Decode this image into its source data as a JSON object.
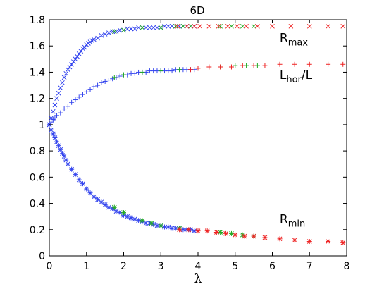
{
  "chart_data": {
    "type": "scatter",
    "title": "6D",
    "xlabel": "λ",
    "ylabel": "",
    "xlim": [
      0,
      8
    ],
    "ylim": [
      0,
      1.8
    ],
    "xticks": [
      "0",
      "1",
      "2",
      "3",
      "4",
      "5",
      "6",
      "7",
      "8"
    ],
    "yticks": [
      "0",
      "0.2",
      "0.4",
      "0.6",
      "0.8",
      "1",
      "1.2",
      "1.4",
      "1.6",
      "1.8"
    ],
    "grid": false,
    "colors": {
      "blue": "#3344ee",
      "green": "#22aa22",
      "red": "#ee2222"
    },
    "annotations": [
      {
        "base": "R",
        "sub": "max",
        "suffix": "",
        "x": 6.5,
        "y": 1.63
      },
      {
        "base": "L",
        "sub": "hor",
        "suffix": "/L",
        "x": 6.5,
        "y": 1.35
      },
      {
        "base": "R",
        "sub": "min",
        "suffix": "",
        "x": 6.5,
        "y": 0.25
      }
    ],
    "series": [
      {
        "curve": "R_max",
        "marker": "x",
        "color": "#3344ee",
        "points": [
          [
            0.0,
            1.0
          ],
          [
            0.05,
            1.05
          ],
          [
            0.1,
            1.1
          ],
          [
            0.15,
            1.15
          ],
          [
            0.2,
            1.2
          ],
          [
            0.25,
            1.24
          ],
          [
            0.3,
            1.28
          ],
          [
            0.35,
            1.32
          ],
          [
            0.4,
            1.36
          ],
          [
            0.45,
            1.39
          ],
          [
            0.5,
            1.42
          ],
          [
            0.55,
            1.44
          ],
          [
            0.6,
            1.46
          ],
          [
            0.65,
            1.48
          ],
          [
            0.7,
            1.5
          ],
          [
            0.75,
            1.52
          ],
          [
            0.8,
            1.54
          ],
          [
            0.85,
            1.56
          ],
          [
            0.9,
            1.58
          ],
          [
            0.95,
            1.59
          ],
          [
            1.0,
            1.61
          ],
          [
            1.05,
            1.62
          ],
          [
            1.1,
            1.63
          ],
          [
            1.15,
            1.64
          ],
          [
            1.2,
            1.65
          ],
          [
            1.3,
            1.66
          ],
          [
            1.4,
            1.68
          ],
          [
            1.5,
            1.69
          ],
          [
            1.6,
            1.7
          ],
          [
            1.7,
            1.71
          ],
          [
            1.8,
            1.71
          ],
          [
            1.9,
            1.72
          ],
          [
            2.0,
            1.72
          ],
          [
            2.1,
            1.73
          ],
          [
            2.2,
            1.73
          ],
          [
            2.3,
            1.73
          ],
          [
            2.4,
            1.74
          ],
          [
            2.5,
            1.74
          ],
          [
            2.6,
            1.74
          ],
          [
            2.7,
            1.74
          ],
          [
            2.8,
            1.74
          ],
          [
            2.9,
            1.74
          ],
          [
            3.0,
            1.74
          ],
          [
            3.1,
            1.75
          ],
          [
            3.2,
            1.75
          ],
          [
            3.3,
            1.75
          ],
          [
            3.4,
            1.75
          ],
          [
            3.5,
            1.75
          ],
          [
            3.6,
            1.75
          ],
          [
            3.7,
            1.75
          ],
          [
            3.8,
            1.75
          ],
          [
            3.9,
            1.75
          ]
        ]
      },
      {
        "curve": "R_max",
        "marker": "x",
        "color": "#22aa22",
        "points": [
          [
            1.75,
            1.71
          ],
          [
            2.0,
            1.72
          ],
          [
            2.5,
            1.74
          ],
          [
            3.0,
            1.74
          ],
          [
            3.4,
            1.75
          ],
          [
            3.6,
            1.75
          ],
          [
            3.8,
            1.75
          ],
          [
            4.6,
            1.75
          ],
          [
            4.9,
            1.75
          ],
          [
            5.2,
            1.75
          ],
          [
            5.5,
            1.75
          ]
        ]
      },
      {
        "curve": "R_max",
        "marker": "x",
        "color": "#ee2222",
        "points": [
          [
            3.45,
            1.75
          ],
          [
            3.7,
            1.75
          ],
          [
            3.9,
            1.75
          ],
          [
            4.05,
            1.75
          ],
          [
            4.3,
            1.75
          ],
          [
            4.55,
            1.75
          ],
          [
            4.8,
            1.75
          ],
          [
            5.05,
            1.75
          ],
          [
            5.3,
            1.75
          ],
          [
            5.6,
            1.75
          ],
          [
            6.0,
            1.75
          ],
          [
            6.5,
            1.75
          ],
          [
            7.0,
            1.75
          ],
          [
            7.5,
            1.75
          ],
          [
            7.9,
            1.75
          ]
        ]
      },
      {
        "curve": "L_hor/L",
        "marker": "+",
        "color": "#3344ee",
        "points": [
          [
            0.0,
            1.0
          ],
          [
            0.05,
            1.02
          ],
          [
            0.1,
            1.04
          ],
          [
            0.15,
            1.05
          ],
          [
            0.2,
            1.07
          ],
          [
            0.3,
            1.09
          ],
          [
            0.4,
            1.12
          ],
          [
            0.5,
            1.14
          ],
          [
            0.6,
            1.17
          ],
          [
            0.7,
            1.19
          ],
          [
            0.8,
            1.21
          ],
          [
            0.9,
            1.23
          ],
          [
            1.0,
            1.25
          ],
          [
            1.1,
            1.27
          ],
          [
            1.2,
            1.29
          ],
          [
            1.3,
            1.3
          ],
          [
            1.4,
            1.32
          ],
          [
            1.5,
            1.33
          ],
          [
            1.6,
            1.34
          ],
          [
            1.7,
            1.35
          ],
          [
            1.8,
            1.36
          ],
          [
            1.9,
            1.37
          ],
          [
            2.0,
            1.38
          ],
          [
            2.1,
            1.38
          ],
          [
            2.2,
            1.39
          ],
          [
            2.3,
            1.39
          ],
          [
            2.4,
            1.4
          ],
          [
            2.5,
            1.4
          ],
          [
            2.6,
            1.4
          ],
          [
            2.7,
            1.41
          ],
          [
            2.8,
            1.41
          ],
          [
            2.9,
            1.41
          ],
          [
            3.0,
            1.41
          ],
          [
            3.1,
            1.41
          ],
          [
            3.2,
            1.41
          ],
          [
            3.3,
            1.41
          ],
          [
            3.4,
            1.42
          ],
          [
            3.5,
            1.42
          ],
          [
            3.6,
            1.42
          ],
          [
            3.7,
            1.42
          ],
          [
            3.8,
            1.42
          ],
          [
            3.9,
            1.42
          ]
        ]
      },
      {
        "curve": "L_hor/L",
        "marker": "+",
        "color": "#22aa22",
        "points": [
          [
            1.75,
            1.36
          ],
          [
            2.0,
            1.38
          ],
          [
            2.5,
            1.4
          ],
          [
            3.0,
            1.41
          ],
          [
            3.5,
            1.42
          ],
          [
            4.6,
            1.44
          ],
          [
            5.0,
            1.45
          ],
          [
            5.3,
            1.45
          ],
          [
            5.6,
            1.45
          ]
        ]
      },
      {
        "curve": "L_hor/L",
        "marker": "+",
        "color": "#ee2222",
        "points": [
          [
            3.8,
            1.42
          ],
          [
            4.0,
            1.43
          ],
          [
            4.3,
            1.44
          ],
          [
            4.6,
            1.44
          ],
          [
            4.9,
            1.44
          ],
          [
            5.2,
            1.45
          ],
          [
            5.5,
            1.45
          ],
          [
            5.8,
            1.45
          ],
          [
            6.2,
            1.46
          ],
          [
            6.6,
            1.46
          ],
          [
            7.0,
            1.46
          ],
          [
            7.5,
            1.46
          ],
          [
            7.9,
            1.46
          ]
        ]
      },
      {
        "curve": "R_min",
        "marker": "*",
        "color": "#3344ee",
        "points": [
          [
            0.0,
            1.0
          ],
          [
            0.05,
            0.96
          ],
          [
            0.1,
            0.93
          ],
          [
            0.15,
            0.9
          ],
          [
            0.2,
            0.87
          ],
          [
            0.25,
            0.84
          ],
          [
            0.3,
            0.81
          ],
          [
            0.35,
            0.78
          ],
          [
            0.4,
            0.76
          ],
          [
            0.45,
            0.73
          ],
          [
            0.5,
            0.7
          ],
          [
            0.6,
            0.66
          ],
          [
            0.7,
            0.62
          ],
          [
            0.8,
            0.58
          ],
          [
            0.9,
            0.55
          ],
          [
            1.0,
            0.51
          ],
          [
            1.1,
            0.48
          ],
          [
            1.2,
            0.45
          ],
          [
            1.3,
            0.43
          ],
          [
            1.4,
            0.41
          ],
          [
            1.5,
            0.39
          ],
          [
            1.6,
            0.37
          ],
          [
            1.7,
            0.36
          ],
          [
            1.8,
            0.34
          ],
          [
            1.9,
            0.33
          ],
          [
            2.0,
            0.31
          ],
          [
            2.1,
            0.3
          ],
          [
            2.2,
            0.29
          ],
          [
            2.3,
            0.28
          ],
          [
            2.4,
            0.27
          ],
          [
            2.5,
            0.26
          ],
          [
            2.6,
            0.25
          ],
          [
            2.7,
            0.25
          ],
          [
            2.8,
            0.24
          ],
          [
            2.9,
            0.23
          ],
          [
            3.0,
            0.23
          ],
          [
            3.1,
            0.22
          ],
          [
            3.2,
            0.22
          ],
          [
            3.3,
            0.21
          ],
          [
            3.4,
            0.21
          ],
          [
            3.5,
            0.21
          ],
          [
            3.6,
            0.2
          ],
          [
            3.7,
            0.2
          ],
          [
            3.8,
            0.2
          ],
          [
            3.9,
            0.19
          ]
        ]
      },
      {
        "curve": "R_min",
        "marker": "*",
        "color": "#22aa22",
        "points": [
          [
            1.75,
            0.37
          ],
          [
            2.0,
            0.33
          ],
          [
            2.5,
            0.27
          ],
          [
            2.75,
            0.25
          ],
          [
            3.0,
            0.23
          ],
          [
            3.5,
            0.21
          ],
          [
            4.6,
            0.18
          ],
          [
            4.9,
            0.17
          ],
          [
            5.2,
            0.16
          ],
          [
            5.5,
            0.15
          ]
        ]
      },
      {
        "curve": "R_min",
        "marker": "*",
        "color": "#ee2222",
        "points": [
          [
            3.5,
            0.2
          ],
          [
            3.75,
            0.2
          ],
          [
            4.0,
            0.19
          ],
          [
            4.25,
            0.19
          ],
          [
            4.5,
            0.18
          ],
          [
            4.75,
            0.17
          ],
          [
            5.0,
            0.16
          ],
          [
            5.25,
            0.15
          ],
          [
            5.5,
            0.15
          ],
          [
            5.8,
            0.14
          ],
          [
            6.2,
            0.13
          ],
          [
            6.6,
            0.12
          ],
          [
            7.0,
            0.11
          ],
          [
            7.5,
            0.11
          ],
          [
            7.9,
            0.1
          ]
        ]
      }
    ]
  }
}
